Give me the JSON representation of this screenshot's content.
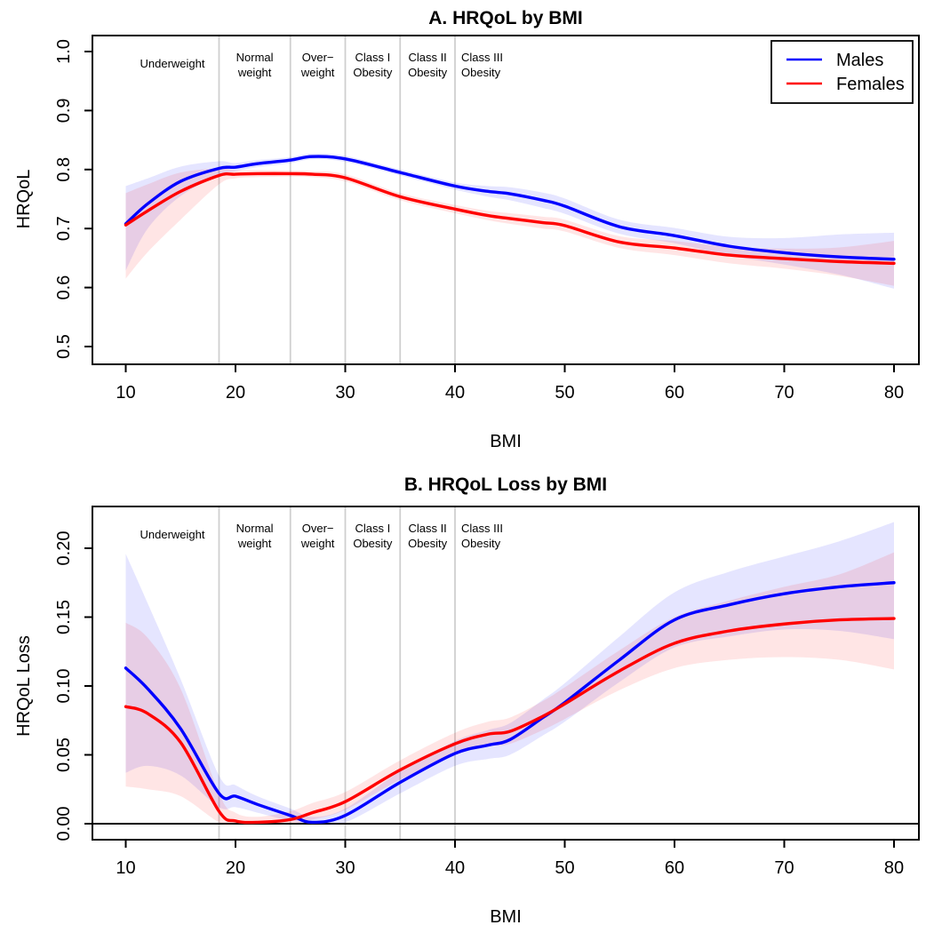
{
  "legend": {
    "position": "topright",
    "entries": [
      {
        "label": "Males",
        "color": "#0000FF"
      },
      {
        "label": "Females",
        "color": "#FF0000"
      }
    ]
  },
  "colors": {
    "males": "#0000FF",
    "females": "#FF0000",
    "reference_line": "#CFCFCF",
    "band_opacity": 0.1
  },
  "chart_data": [
    {
      "type": "line",
      "title": "A. HRQoL by BMI",
      "xlabel": "BMI",
      "ylabel": "HRQoL",
      "ylim": [
        0.5,
        1.0
      ],
      "xticks": [
        "10",
        "20",
        "30",
        "40",
        "50",
        "60",
        "70",
        "80"
      ],
      "xtick_values": [
        10,
        20,
        30,
        40,
        50,
        60,
        70,
        80
      ],
      "yticks": [
        "0.5",
        "0.6",
        "0.7",
        "0.8",
        "0.9",
        "1.0"
      ],
      "ytick_values": [
        0.5,
        0.6,
        0.7,
        0.8,
        0.9,
        1.0
      ],
      "grid": false,
      "reference_lines_x": [
        18.5,
        25,
        30,
        35,
        40
      ],
      "zero_line": false,
      "category_labels": [
        {
          "lines": [
            "Underweight"
          ],
          "from": 10,
          "to": 18.5,
          "align": "center"
        },
        {
          "lines": [
            "Normal",
            "weight"
          ],
          "from": 18.5,
          "to": 25,
          "align": "center"
        },
        {
          "lines": [
            "Over−",
            "weight"
          ],
          "from": 25,
          "to": 30,
          "align": "center"
        },
        {
          "lines": [
            "Class I",
            "Obesity"
          ],
          "from": 30,
          "to": 35,
          "align": "center"
        },
        {
          "lines": [
            "Class II",
            "Obesity"
          ],
          "from": 35,
          "to": 40,
          "align": "center"
        },
        {
          "lines": [
            "Class III",
            "Obesity"
          ],
          "from": 40,
          "to": 80,
          "align": "left"
        }
      ],
      "x": [
        10,
        12,
        15,
        18.5,
        20,
        22,
        25,
        27,
        30,
        35,
        40,
        43,
        45,
        48,
        50,
        55,
        60,
        65,
        70,
        75,
        80
      ],
      "series": [
        {
          "name": "Males",
          "color": "#0000FF",
          "y": [
            0.708,
            0.742,
            0.78,
            0.802,
            0.804,
            0.81,
            0.816,
            0.822,
            0.818,
            0.795,
            0.772,
            0.763,
            0.759,
            0.748,
            0.738,
            0.703,
            0.688,
            0.67,
            0.659,
            0.652,
            0.648
          ],
          "lower": [
            0.629,
            0.7,
            0.755,
            0.79,
            0.797,
            0.804,
            0.811,
            0.817,
            0.813,
            0.79,
            0.766,
            0.754,
            0.748,
            0.735,
            0.725,
            0.691,
            0.675,
            0.654,
            0.639,
            0.622,
            0.598
          ],
          "upper": [
            0.772,
            0.785,
            0.805,
            0.814,
            0.811,
            0.816,
            0.821,
            0.827,
            0.823,
            0.8,
            0.778,
            0.772,
            0.77,
            0.761,
            0.751,
            0.715,
            0.701,
            0.686,
            0.684,
            0.69,
            0.693
          ]
        },
        {
          "name": "Females",
          "color": "#FF0000",
          "y": [
            0.706,
            0.73,
            0.763,
            0.79,
            0.792,
            0.793,
            0.793,
            0.792,
            0.786,
            0.754,
            0.733,
            0.722,
            0.717,
            0.71,
            0.705,
            0.677,
            0.667,
            0.655,
            0.649,
            0.644,
            0.641
          ],
          "lower": [
            0.615,
            0.66,
            0.715,
            0.775,
            0.785,
            0.787,
            0.788,
            0.787,
            0.78,
            0.748,
            0.726,
            0.714,
            0.708,
            0.7,
            0.695,
            0.667,
            0.655,
            0.641,
            0.632,
            0.62,
            0.603
          ],
          "upper": [
            0.76,
            0.775,
            0.795,
            0.802,
            0.799,
            0.799,
            0.798,
            0.797,
            0.792,
            0.76,
            0.74,
            0.73,
            0.726,
            0.72,
            0.715,
            0.687,
            0.679,
            0.669,
            0.666,
            0.668,
            0.679
          ]
        }
      ]
    },
    {
      "type": "line",
      "title": "B. HRQoL Loss by BMI",
      "xlabel": "BMI",
      "ylabel": "HRQoL Loss",
      "ylim": [
        0.0,
        0.22
      ],
      "xticks": [
        "10",
        "20",
        "30",
        "40",
        "50",
        "60",
        "70",
        "80"
      ],
      "xtick_values": [
        10,
        20,
        30,
        40,
        50,
        60,
        70,
        80
      ],
      "yticks": [
        "0.00",
        "0.05",
        "0.10",
        "0.15",
        "0.20"
      ],
      "ytick_values": [
        0.0,
        0.05,
        0.1,
        0.15,
        0.2
      ],
      "grid": false,
      "reference_lines_x": [
        18.5,
        25,
        30,
        35,
        40
      ],
      "zero_line": true,
      "category_labels": [
        {
          "lines": [
            "Underweight"
          ],
          "from": 10,
          "to": 18.5,
          "align": "center"
        },
        {
          "lines": [
            "Normal",
            "weight"
          ],
          "from": 18.5,
          "to": 25,
          "align": "center"
        },
        {
          "lines": [
            "Over−",
            "weight"
          ],
          "from": 25,
          "to": 30,
          "align": "center"
        },
        {
          "lines": [
            "Class I",
            "Obesity"
          ],
          "from": 30,
          "to": 35,
          "align": "center"
        },
        {
          "lines": [
            "Class II",
            "Obesity"
          ],
          "from": 35,
          "to": 40,
          "align": "center"
        },
        {
          "lines": [
            "Class III",
            "Obesity"
          ],
          "from": 40,
          "to": 80,
          "align": "left"
        }
      ],
      "x": [
        10,
        12,
        15,
        18.5,
        20,
        22,
        25,
        27,
        30,
        35,
        40,
        43,
        45,
        48,
        50,
        55,
        60,
        65,
        70,
        75,
        80
      ],
      "series": [
        {
          "name": "Males",
          "color": "#0000FF",
          "y": [
            0.113,
            0.098,
            0.069,
            0.022,
            0.02,
            0.014,
            0.006,
            0.001,
            0.006,
            0.03,
            0.051,
            0.057,
            0.061,
            0.077,
            0.088,
            0.119,
            0.148,
            0.159,
            0.167,
            0.172,
            0.175
          ],
          "lower": [
            0.037,
            0.042,
            0.035,
            0.012,
            0.012,
            0.008,
            0.002,
            0.0,
            0.001,
            0.022,
            0.042,
            0.047,
            0.05,
            0.064,
            0.074,
            0.103,
            0.128,
            0.136,
            0.141,
            0.14,
            0.134
          ],
          "upper": [
            0.196,
            0.16,
            0.105,
            0.035,
            0.028,
            0.02,
            0.011,
            0.005,
            0.011,
            0.038,
            0.06,
            0.068,
            0.073,
            0.09,
            0.102,
            0.136,
            0.168,
            0.183,
            0.194,
            0.205,
            0.219
          ]
        },
        {
          "name": "Females",
          "color": "#FF0000",
          "y": [
            0.085,
            0.08,
            0.059,
            0.009,
            0.002,
            0.001,
            0.003,
            0.008,
            0.016,
            0.039,
            0.058,
            0.065,
            0.067,
            0.078,
            0.087,
            0.111,
            0.131,
            0.14,
            0.145,
            0.148,
            0.149
          ],
          "lower": [
            0.027,
            0.025,
            0.02,
            0.001,
            0.0,
            0.0,
            0.0,
            0.003,
            0.01,
            0.032,
            0.05,
            0.056,
            0.058,
            0.068,
            0.076,
            0.097,
            0.113,
            0.119,
            0.121,
            0.119,
            0.112
          ],
          "upper": [
            0.146,
            0.135,
            0.098,
            0.022,
            0.008,
            0.005,
            0.009,
            0.015,
            0.023,
            0.046,
            0.066,
            0.074,
            0.077,
            0.089,
            0.099,
            0.126,
            0.15,
            0.162,
            0.172,
            0.181,
            0.197
          ]
        }
      ]
    }
  ]
}
